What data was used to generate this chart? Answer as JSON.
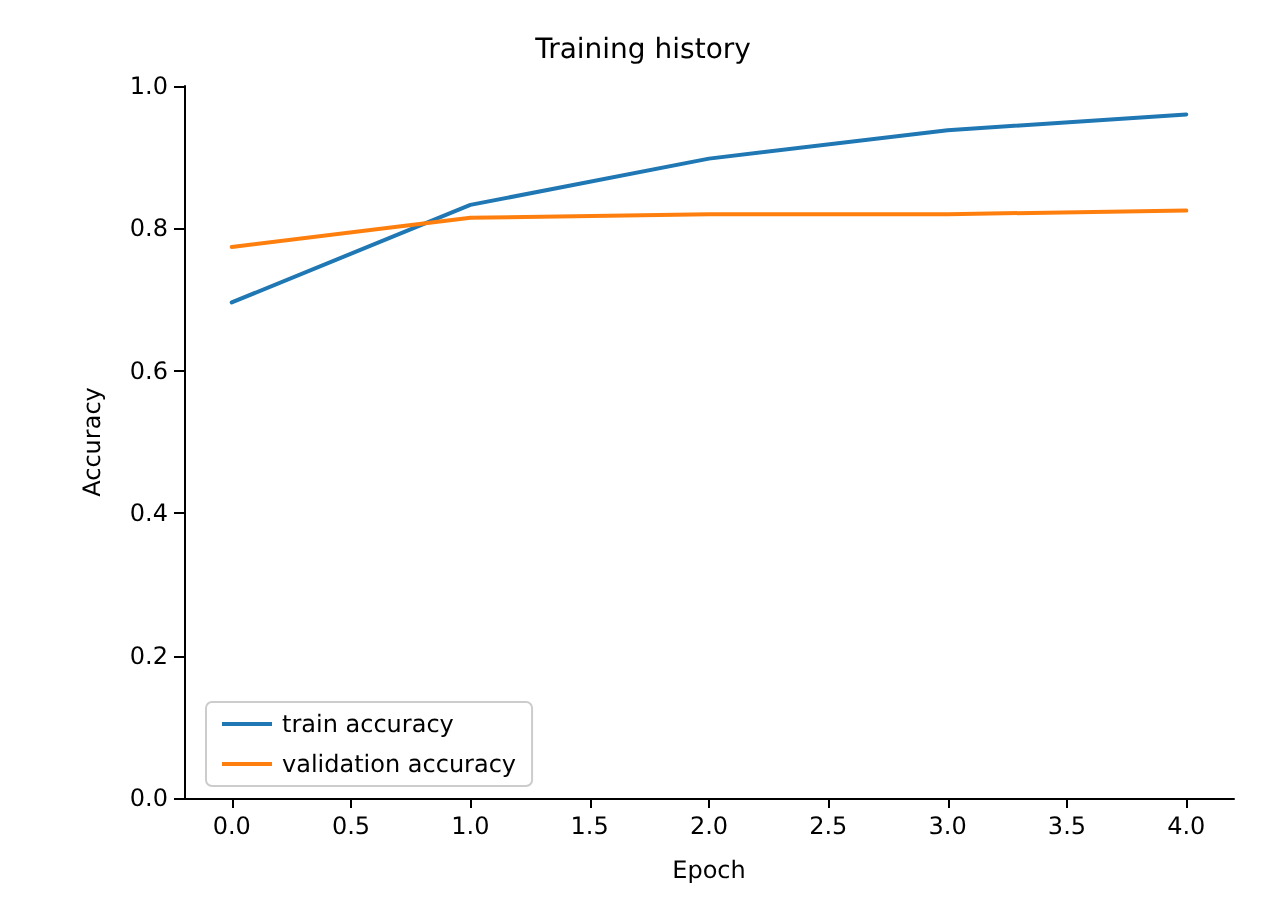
{
  "chart_data": {
    "type": "line",
    "title": "Training history",
    "xlabel": "Epoch",
    "ylabel": "Accuracy",
    "x": [
      0,
      1,
      2,
      3,
      4
    ],
    "series": [
      {
        "name": "train accuracy",
        "color": "#1f77b4",
        "values": [
          0.696,
          0.833,
          0.898,
          0.938,
          0.96
        ]
      },
      {
        "name": "validation accuracy",
        "color": "#ff7f0e",
        "values": [
          0.774,
          0.815,
          0.82,
          0.82,
          0.825
        ]
      }
    ],
    "xlim": [
      -0.2,
      4.2
    ],
    "xticks": [
      {
        "value": 0,
        "label": "0.0"
      },
      0.5,
      {
        "value": 1,
        "label": "1.0"
      },
      1.5,
      {
        "value": 2,
        "label": "2.0"
      },
      2.5,
      {
        "value": 3,
        "label": "3.0"
      },
      3.5,
      {
        "value": 4,
        "label": "4.0"
      }
    ],
    "ylim": [
      0,
      1
    ],
    "yticks": [
      {
        "value": 0,
        "label": "0.0"
      },
      0.2,
      0.4,
      0.6,
      0.8,
      {
        "value": 1,
        "label": "1.0"
      }
    ],
    "grid": false,
    "legend": "bottom left"
  }
}
